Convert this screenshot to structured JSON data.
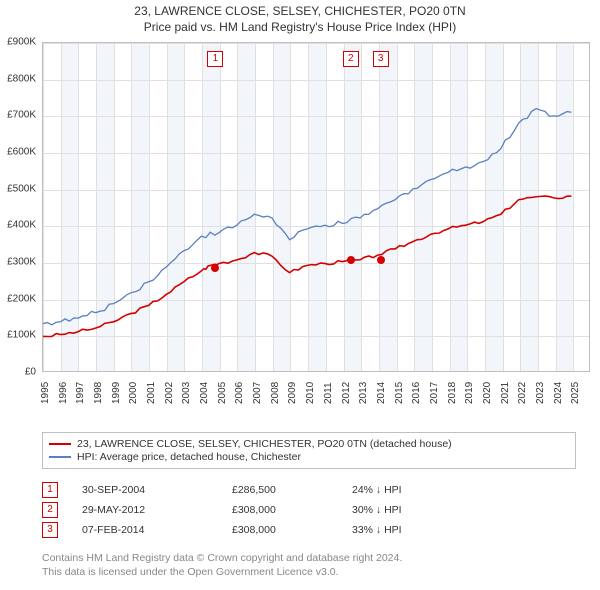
{
  "title1": "23, LAWRENCE CLOSE, SELSEY, CHICHESTER, PO20 0TN",
  "title2": "Price paid vs. HM Land Registry's House Price Index (HPI)",
  "chart": {
    "type": "line",
    "background_color": "#ffffff",
    "grid_color": "#e0e0e0",
    "border_color": "#bfbfbf",
    "band_color": "#f2f6fb",
    "x": {
      "min": 1995,
      "max": 2026,
      "ticks": [
        1995,
        1996,
        1997,
        1998,
        1999,
        2000,
        2001,
        2002,
        2003,
        2004,
        2005,
        2006,
        2007,
        2008,
        2009,
        2010,
        2011,
        2012,
        2013,
        2014,
        2015,
        2016,
        2017,
        2018,
        2019,
        2020,
        2021,
        2022,
        2023,
        2024,
        2025
      ]
    },
    "y": {
      "min": 0,
      "max": 900000,
      "step": 100000,
      "tick_labels": [
        "£0",
        "£100K",
        "£200K",
        "£300K",
        "£400K",
        "£500K",
        "£600K",
        "£700K",
        "£800K",
        "£900K"
      ]
    },
    "series": [
      {
        "name": "23, LAWRENCE CLOSE, SELSEY, CHICHESTER, PO20 0TN (detached house)",
        "color": "#d40000",
        "width": 1.6,
        "x": [
          1995,
          1996,
          1997,
          1998,
          1999,
          2000,
          2001,
          2002,
          2003,
          2004,
          2004.5,
          2005,
          2006,
          2007,
          2008,
          2009,
          2010,
          2011,
          2012,
          2013,
          2014,
          2015,
          2016,
          2017,
          2018,
          2019,
          2020,
          2021,
          2022,
          2023,
          2024,
          2025
        ],
        "y": [
          95000,
          100000,
          108000,
          118000,
          135000,
          158000,
          180000,
          210000,
          245000,
          275000,
          290000,
          295000,
          305000,
          325000,
          315000,
          270000,
          290000,
          295000,
          300000,
          305000,
          318000,
          335000,
          355000,
          375000,
          390000,
          400000,
          410000,
          430000,
          470000,
          478000,
          475000,
          480000
        ]
      },
      {
        "name": "HPI: Average price, detached house, Chichester",
        "color": "#5a7fbf",
        "width": 1.3,
        "x": [
          1995,
          1996,
          1997,
          1998,
          1999,
          2000,
          2001,
          2002,
          2003,
          2004,
          2005,
          2006,
          2007,
          2008,
          2009,
          2010,
          2011,
          2012,
          2013,
          2014,
          2015,
          2016,
          2017,
          2018,
          2019,
          2020,
          2021,
          2022,
          2023,
          2024,
          2025
        ],
        "y": [
          130000,
          135000,
          145000,
          160000,
          185000,
          215000,
          245000,
          285000,
          330000,
          370000,
          380000,
          400000,
          430000,
          420000,
          360000,
          390000,
          400000,
          405000,
          420000,
          445000,
          470000,
          500000,
          525000,
          545000,
          560000,
          575000,
          610000,
          680000,
          720000,
          700000,
          710000
        ]
      }
    ],
    "markers": [
      {
        "n": "1",
        "x": 2004.75,
        "date": "30-SEP-2004",
        "price": "£286,500",
        "pct": "24% ↓ HPI",
        "yval": 286500
      },
      {
        "n": "2",
        "x": 2012.41,
        "date": "29-MAY-2012",
        "pct": "30% ↓ HPI",
        "price": "£308,000",
        "yval": 308000
      },
      {
        "n": "3",
        "x": 2014.1,
        "date": "07-FEB-2014",
        "pct": "33% ↓ HPI",
        "price": "£308,000",
        "yval": 308000
      }
    ],
    "marker_flag_color": "#d40000",
    "point_color": "#d40000",
    "label_fontsize": 10
  },
  "legend": {
    "items": [
      {
        "color": "#d40000",
        "label": "23, LAWRENCE CLOSE, SELSEY, CHICHESTER, PO20 0TN (detached house)"
      },
      {
        "color": "#5a7fbf",
        "label": "HPI: Average price, detached house, Chichester"
      }
    ]
  },
  "footer1": "Contains HM Land Registry data © Crown copyright and database right 2024.",
  "footer2": "This data is licensed under the Open Government Licence v3.0."
}
